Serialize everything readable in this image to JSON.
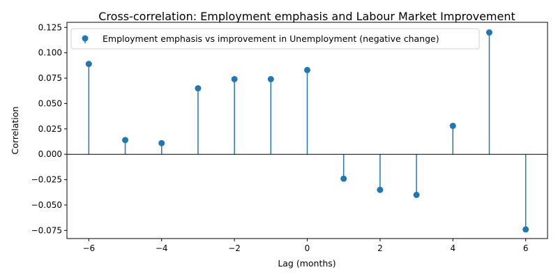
{
  "chart_data": {
    "type": "stem",
    "title": "Cross-correlation: Employment emphasis and Labour Market Improvement",
    "xlabel": "Lag (months)",
    "ylabel": "Correlation",
    "xlim": [
      -6.6,
      6.6
    ],
    "ylim": [
      -0.083,
      0.13
    ],
    "xticks": [
      -6,
      -4,
      -2,
      0,
      2,
      4,
      6
    ],
    "xtick_labels": [
      "−6",
      "−4",
      "−2",
      "0",
      "2",
      "4",
      "6"
    ],
    "yticks": [
      -0.075,
      -0.05,
      -0.025,
      0,
      0.025,
      0.05,
      0.075,
      0.1,
      0.125
    ],
    "ytick_labels": [
      "−0.075",
      "−0.050",
      "−0.025",
      "0.000",
      "0.025",
      "0.050",
      "0.075",
      "0.100",
      "0.125"
    ],
    "baseline": 0,
    "legend_position": "upper-left",
    "color": "#1f77b4",
    "series": [
      {
        "name": "Employment emphasis vs improvement in Unemployment (negative change)",
        "x": [
          -6,
          -5,
          -4,
          -3,
          -2,
          -1,
          0,
          1,
          2,
          3,
          4,
          5,
          6
        ],
        "y": [
          0.089,
          0.014,
          0.011,
          0.065,
          0.074,
          0.074,
          0.083,
          -0.024,
          -0.035,
          -0.04,
          0.028,
          0.12,
          -0.074
        ]
      }
    ]
  }
}
